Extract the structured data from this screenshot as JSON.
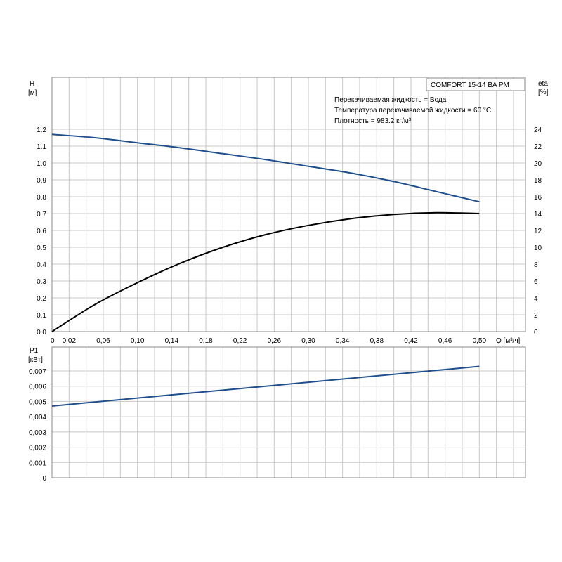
{
  "info": {
    "model": "COMFORT 15-14 BA PM",
    "lines": [
      "Перекачиваемая жидкость = Вода",
      "Температура перекачиваемой жидкости = 60 °C",
      "Плотность = 983.2 кг/м³"
    ]
  },
  "chart_data": [
    {
      "type": "line",
      "xlabel": "Q [м³/ч]",
      "ylabel": "H [м]",
      "y2label": "eta [%]",
      "xlim": [
        0,
        0.5
      ],
      "ylim": [
        0,
        1.2
      ],
      "y2lim": [
        0,
        24
      ],
      "x_ticks": [
        "0",
        "0,02",
        "0,06",
        "0,10",
        "0,14",
        "0,18",
        "0,22",
        "0,26",
        "0,30",
        "0,34",
        "0,38",
        "0,42",
        "0,46",
        "0,50"
      ],
      "x_tick_values": [
        0,
        0.02,
        0.06,
        0.1,
        0.14,
        0.18,
        0.22,
        0.26,
        0.3,
        0.34,
        0.38,
        0.42,
        0.46,
        0.5
      ],
      "y_ticks": [
        "0.0",
        "0.1",
        "0.2",
        "0.3",
        "0.4",
        "0.5",
        "0.6",
        "0.7",
        "0.8",
        "0.9",
        "1.0",
        "1.1",
        "1.2"
      ],
      "y2_ticks": [
        "0",
        "2",
        "4",
        "6",
        "8",
        "10",
        "12",
        "14",
        "16",
        "18",
        "20",
        "22",
        "24"
      ],
      "grid": true,
      "series": [
        {
          "axis": "left",
          "color": "#1f4e8c",
          "x": [
            0,
            0.05,
            0.1,
            0.15,
            0.2,
            0.25,
            0.3,
            0.35,
            0.4,
            0.45,
            0.5
          ],
          "y": [
            1.17,
            1.15,
            1.12,
            1.09,
            1.055,
            1.02,
            0.98,
            0.94,
            0.89,
            0.83,
            0.77
          ]
        },
        {
          "axis": "right",
          "color": "#000000",
          "x": [
            0,
            0.05,
            0.1,
            0.15,
            0.2,
            0.25,
            0.3,
            0.35,
            0.4,
            0.45,
            0.5
          ],
          "y": [
            0,
            3.2,
            5.8,
            8.1,
            10.0,
            11.5,
            12.6,
            13.4,
            13.9,
            14.1,
            14.0
          ]
        }
      ]
    },
    {
      "type": "line",
      "xlabel": "",
      "ylabel": "P1 [кВт]",
      "xlim": [
        0,
        0.5
      ],
      "ylim": [
        0,
        0.008
      ],
      "y_ticks": [
        "0",
        "0,001",
        "0,002",
        "0,003",
        "0,004",
        "0,005",
        "0,006",
        "0,007"
      ],
      "grid": true,
      "series": [
        {
          "axis": "left",
          "color": "#1f4e8c",
          "x": [
            0,
            0.25,
            0.5
          ],
          "y": [
            0.0047,
            0.006,
            0.0073
          ]
        }
      ]
    }
  ]
}
